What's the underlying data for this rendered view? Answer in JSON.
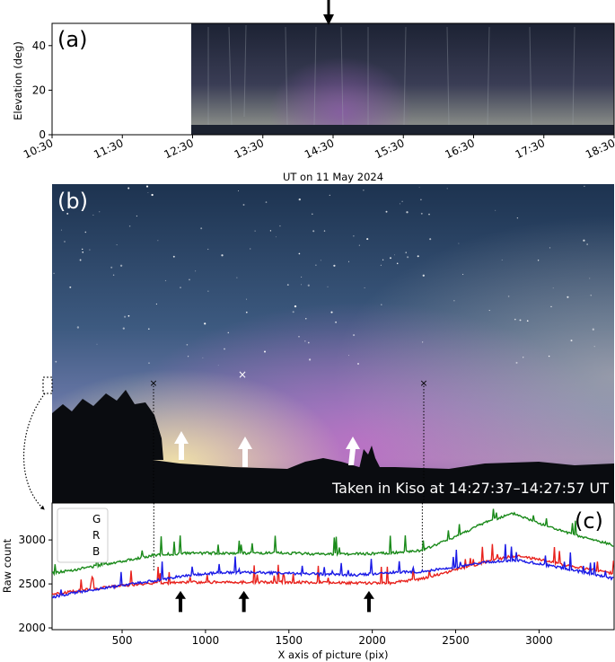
{
  "panel_a": {
    "label": "(a)",
    "ylabel": "Elevation (deg)",
    "xlabel": "UT on 11 May 2024",
    "yticks": [
      "0",
      "20",
      "40"
    ],
    "xticks": [
      "10:30",
      "11:30",
      "12:30",
      "13:30",
      "14:30",
      "15:30",
      "16:30",
      "17:30",
      "18:30"
    ]
  },
  "panel_b": {
    "label": "(b)",
    "caption": "Taken in Kiso at 14:27:37–14:27:57 UT"
  },
  "chart_data": {
    "type": "line",
    "label": "(c)",
    "xlabel": "X axis of picture (pix)",
    "ylabel": "Raw count",
    "xlim": [
      80,
      3450
    ],
    "ylim": [
      1980,
      3420
    ],
    "xticks": [
      500,
      1000,
      1500,
      2000,
      2500,
      3000
    ],
    "yticks": [
      2000,
      2500,
      3000
    ],
    "legend": {
      "position": "top-left",
      "entries": [
        "G",
        "R",
        "B"
      ]
    },
    "markers": {
      "dotted_lines_x": [
        690,
        2300
      ],
      "arrows_x": [
        850,
        1230,
        1980
      ]
    },
    "x": [
      80,
      300,
      500,
      700,
      900,
      1100,
      1300,
      1500,
      1700,
      1900,
      2100,
      2300,
      2500,
      2700,
      2850,
      3000,
      3200,
      3450
    ],
    "series": [
      {
        "name": "G",
        "color": "#1a8a1a",
        "values": [
          2620,
          2690,
          2760,
          2830,
          2850,
          2850,
          2850,
          2850,
          2840,
          2840,
          2850,
          2880,
          3040,
          3220,
          3300,
          3190,
          3060,
          2940
        ]
      },
      {
        "name": "R",
        "color": "#e8231e",
        "values": [
          2380,
          2440,
          2480,
          2510,
          2520,
          2520,
          2520,
          2520,
          2515,
          2510,
          2510,
          2560,
          2660,
          2760,
          2820,
          2780,
          2700,
          2620
        ]
      },
      {
        "name": "B",
        "color": "#1a1ae6",
        "values": [
          2350,
          2430,
          2480,
          2540,
          2600,
          2630,
          2630,
          2620,
          2610,
          2600,
          2630,
          2640,
          2690,
          2750,
          2770,
          2730,
          2660,
          2560
        ]
      }
    ]
  }
}
